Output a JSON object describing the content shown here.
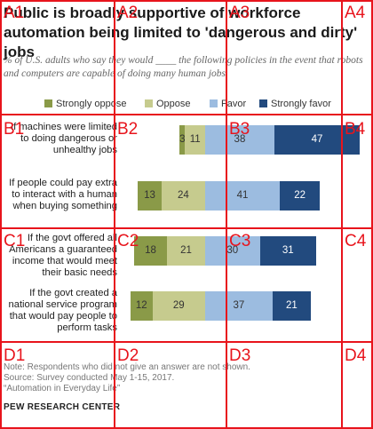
{
  "chart_data": {
    "type": "bar",
    "stacked": true,
    "orientation": "horizontal",
    "title": "Public is broadly supportive of workforce automation being limited to 'dangerous and dirty' jobs",
    "subtitle": "% of U.S. adults who say they would ____ the following policies in the event that robots and computers are capable of doing many human jobs",
    "categories": [
      "If machines were limited to doing dangerous or unhealthy jobs",
      "If people could pay extra to interact with a human when buying something",
      "If the govt offered all Americans a guaranteed income that would meet their basic needs",
      "If the govt created a national service program that would pay people to perform tasks"
    ],
    "series": [
      {
        "name": "Strongly oppose",
        "color": "#8a9a48",
        "values": [
          3,
          13,
          18,
          12
        ]
      },
      {
        "name": "Oppose",
        "color": "#c6cb8e",
        "values": [
          11,
          24,
          21,
          29
        ]
      },
      {
        "name": "Favor",
        "color": "#9cbce0",
        "values": [
          38,
          41,
          30,
          37
        ]
      },
      {
        "name": "Strongly favor",
        "color": "#224a7e",
        "values": [
          47,
          22,
          31,
          21
        ]
      }
    ],
    "legend_position": "top",
    "grid": false
  },
  "note": "Note: Respondents who did not give an answer are not shown.",
  "source_line": "Source: Survey conducted May 1-15, 2017.",
  "report_title": "“Automation in Everyday Life”",
  "brand": "PEW RESEARCH CENTER",
  "grid_overlay": {
    "color": "#e8141c",
    "labels": [
      "A1",
      "A2",
      "A3",
      "A4",
      "B1",
      "B2",
      "B3",
      "B4",
      "C1",
      "C2",
      "C3",
      "C4",
      "D1",
      "D2",
      "D3",
      "D4"
    ]
  }
}
